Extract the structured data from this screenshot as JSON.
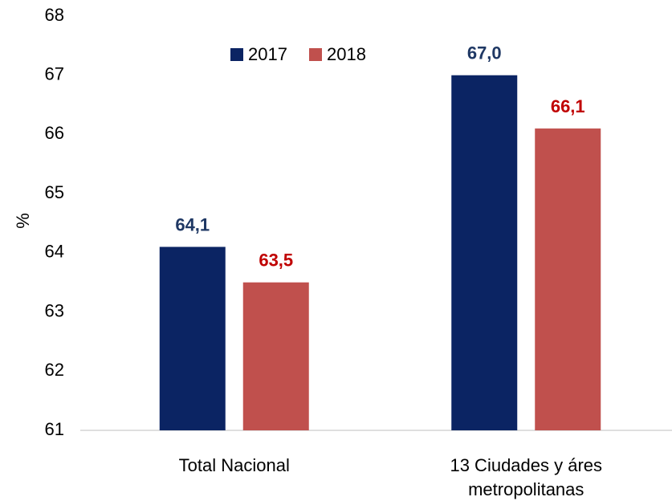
{
  "chart_data": {
    "type": "bar",
    "y_label": "%",
    "categories": [
      "Total Nacional",
      "13 Ciudades y áres metropolitanas"
    ],
    "series": [
      {
        "name": "2017",
        "color": "#0b2463",
        "label_color": "#1f3864",
        "values": [
          64.1,
          67.0
        ],
        "value_labels": [
          "64,1",
          "67,0"
        ]
      },
      {
        "name": "2018",
        "color": "#c0504d",
        "label_color": "#c00000",
        "values": [
          63.5,
          66.1
        ],
        "value_labels": [
          "63,5",
          "66,1"
        ]
      }
    ],
    "ylim": [
      61,
      68
    ],
    "yticks": [
      61,
      62,
      63,
      64,
      65,
      66,
      67,
      68
    ],
    "grid": false,
    "legend": "top"
  }
}
